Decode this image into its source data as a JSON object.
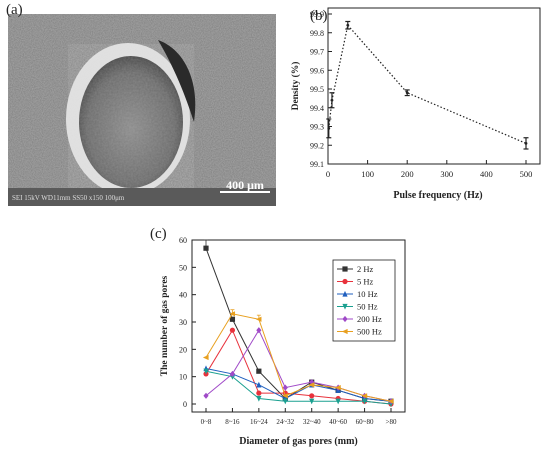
{
  "panel_a": {
    "label": "(a)",
    "scale_bar": "400 μm",
    "info_text": "SEI  15kV  WD11mm  SS50  x150  100μm"
  },
  "chart_data": [
    {
      "id": "b",
      "panel_label": "(b)",
      "type": "line",
      "xlabel": "Pulse frequency (Hz)",
      "ylabel": "Density (%)",
      "xlim": [
        0,
        500
      ],
      "ylim": [
        99.1,
        99.9
      ],
      "xticks": [
        0,
        100,
        200,
        300,
        400,
        500
      ],
      "yticks": [
        99.1,
        99.2,
        99.3,
        99.4,
        99.5,
        99.6,
        99.7,
        99.8,
        99.9
      ],
      "x": [
        2,
        10,
        50,
        200,
        500
      ],
      "values": [
        99.29,
        99.44,
        99.84,
        99.48,
        99.21
      ],
      "errors": [
        0.05,
        0.04,
        0.02,
        0.015,
        0.03
      ],
      "line_style": "dotted",
      "color": "#222222"
    },
    {
      "id": "c",
      "panel_label": "(c)",
      "type": "line",
      "xlabel": "Diameter of gas pores (mm)",
      "ylabel": "The number of gas pores",
      "categories": [
        "0~8",
        "8~16",
        "16~24",
        "24~32",
        "32~40",
        "40~60",
        "60~80",
        ">80"
      ],
      "ylim": [
        0,
        60
      ],
      "yticks": [
        0,
        10,
        20,
        30,
        40,
        50,
        60
      ],
      "legend_position": "top-right",
      "series": [
        {
          "name": "2 Hz",
          "color": "#333333",
          "marker": "square",
          "values": [
            57,
            31,
            12,
            2,
            8,
            5,
            2,
            1
          ]
        },
        {
          "name": "5 Hz",
          "color": "#e8323c",
          "marker": "circle",
          "values": [
            11,
            27,
            4,
            4,
            3,
            2,
            1,
            0
          ]
        },
        {
          "name": "10 Hz",
          "color": "#1f5fbf",
          "marker": "triangle-up",
          "values": [
            13,
            11,
            7,
            2,
            7,
            5,
            2,
            1
          ]
        },
        {
          "name": "50 Hz",
          "color": "#1aa090",
          "marker": "triangle-down",
          "values": [
            12,
            10,
            2,
            1,
            1,
            1,
            1,
            0
          ]
        },
        {
          "name": "200 Hz",
          "color": "#a04ac8",
          "marker": "diamond",
          "values": [
            3,
            11,
            27,
            6,
            8,
            6,
            3,
            1
          ]
        },
        {
          "name": "500 Hz",
          "color": "#e8a020",
          "marker": "triangle-left",
          "values": [
            17,
            33,
            31,
            3,
            7,
            6,
            3,
            1
          ]
        }
      ]
    }
  ]
}
